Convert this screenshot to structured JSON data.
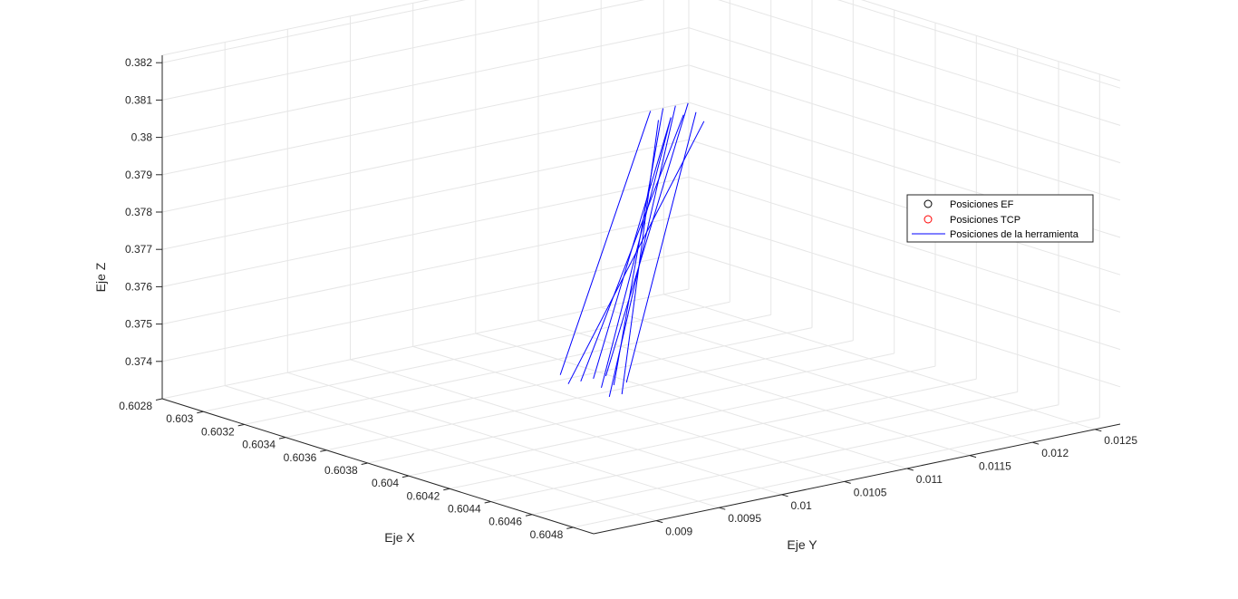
{
  "chart_data": {
    "type": "line3d",
    "title": "",
    "xlabel": "Eje X",
    "ylabel": "Eje Y",
    "zlabel": "Eje Z",
    "xlim": [
      0.6028,
      0.6049
    ],
    "ylim": [
      0.0085,
      0.0127
    ],
    "zlim": [
      0.373,
      0.3822
    ],
    "x_ticks": [
      "0.6028",
      "0.603",
      "0.6032",
      "0.6034",
      "0.6036",
      "0.6038",
      "0.604",
      "0.6042",
      "0.6044",
      "0.6046",
      "0.6048"
    ],
    "y_ticks": [
      "0.009",
      "0.0095",
      "0.01",
      "0.0105",
      "0.011",
      "0.0115",
      "0.012",
      "0.0125"
    ],
    "z_ticks": [
      "0.374",
      "0.375",
      "0.376",
      "0.377",
      "0.378",
      "0.379",
      "0.38",
      "0.381",
      "0.382"
    ],
    "grid": true,
    "legend_position": "right",
    "series": [
      {
        "name": "Posiciones EF",
        "marker": "circle",
        "color": "#000000",
        "points": []
      },
      {
        "name": "Posiciones TCP",
        "marker": "circle",
        "color": "#ff0000",
        "points": []
      },
      {
        "name": "Posiciones de la herramienta",
        "style": "line",
        "color": "#0000ff",
        "segments": [
          [
            [
              0.6039,
              0.0102,
              0.374
            ],
            [
              0.6043,
              0.0101,
              0.382
            ]
          ],
          [
            [
              0.6038,
              0.0102,
              0.374
            ],
            [
              0.6043,
              0.0102,
              0.382
            ]
          ],
          [
            [
              0.6039,
              0.0103,
              0.374
            ],
            [
              0.6042,
              0.0102,
              0.382
            ]
          ],
          [
            [
              0.6038,
              0.0103,
              0.374
            ],
            [
              0.6043,
              0.0101,
              0.382
            ]
          ],
          [
            [
              0.604,
              0.0101,
              0.374
            ],
            [
              0.6042,
              0.0103,
              0.382
            ]
          ],
          [
            [
              0.6038,
              0.0101,
              0.374
            ],
            [
              0.6044,
              0.0102,
              0.382
            ]
          ],
          [
            [
              0.6039,
              0.0104,
              0.374
            ],
            [
              0.6043,
              0.0103,
              0.382
            ]
          ],
          [
            [
              0.6037,
              0.0102,
              0.374
            ],
            [
              0.6042,
              0.0101,
              0.382
            ]
          ],
          [
            [
              0.604,
              0.0102,
              0.374
            ],
            [
              0.6043,
              0.01,
              0.382
            ]
          ],
          [
            [
              0.6038,
              0.0104,
              0.374
            ],
            [
              0.6042,
              0.0104,
              0.382
            ]
          ]
        ]
      }
    ]
  }
}
